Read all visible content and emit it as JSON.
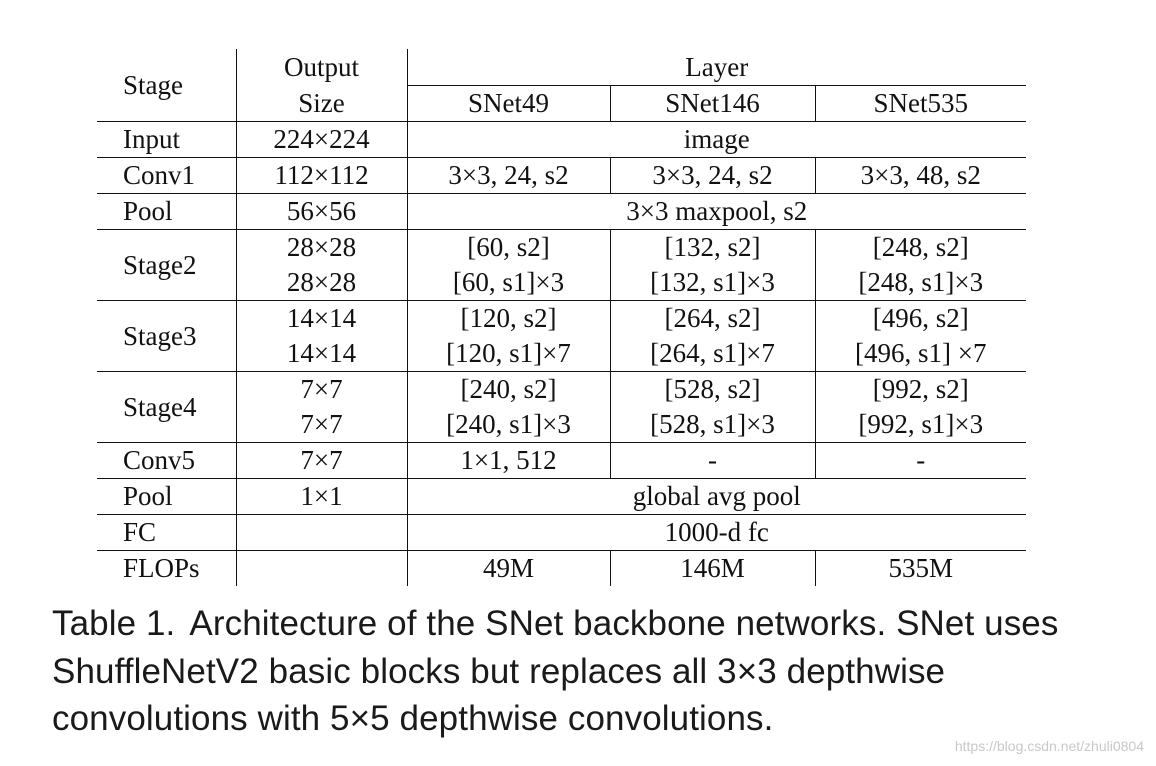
{
  "table": {
    "headers": {
      "stage": "Stage",
      "output_size_line1": "Output",
      "output_size_line2": "Size",
      "layer": "Layer",
      "snet49": "SNet49",
      "snet146": "SNet146",
      "snet535": "SNet535"
    },
    "rows": {
      "input": {
        "stage": "Input",
        "size": "224×224",
        "layer": "image"
      },
      "conv1": {
        "stage": "Conv1",
        "size": "112×112",
        "snet49": "3×3, 24, s2",
        "snet146": "3×3, 24, s2",
        "snet535": "3×3, 48, s2"
      },
      "pool1": {
        "stage": "Pool",
        "size": "56×56",
        "layer": "3×3 maxpool, s2"
      },
      "stage2": {
        "stage": "Stage2",
        "size1": "28×28",
        "size2": "28×28",
        "snet49_1": "[60, s2]",
        "snet49_2": "[60, s1]×3",
        "snet146_1": "[132, s2]",
        "snet146_2": "[132, s1]×3",
        "snet535_1": "[248, s2]",
        "snet535_2": "[248, s1]×3"
      },
      "stage3": {
        "stage": "Stage3",
        "size1": "14×14",
        "size2": "14×14",
        "snet49_1": "[120, s2]",
        "snet49_2": "[120, s1]×7",
        "snet146_1": "[264, s2]",
        "snet146_2": "[264, s1]×7",
        "snet535_1": "[496, s2]",
        "snet535_2": "[496, s1] ×7"
      },
      "stage4": {
        "stage": "Stage4",
        "size1": "7×7",
        "size2": "7×7",
        "snet49_1": "[240, s2]",
        "snet49_2": "[240, s1]×3",
        "snet146_1": "[528, s2]",
        "snet146_2": "[528, s1]×3",
        "snet535_1": "[992, s2]",
        "snet535_2": "[992, s1]×3"
      },
      "conv5": {
        "stage": "Conv5",
        "size": "7×7",
        "snet49": "1×1, 512",
        "snet146": "-",
        "snet535": "-"
      },
      "pool2": {
        "stage": "Pool",
        "size": "1×1",
        "layer": "global avg pool"
      },
      "fc": {
        "stage": "FC",
        "size": "",
        "layer": "1000-d fc"
      },
      "flops": {
        "stage": "FLOPs",
        "size": "",
        "snet49": "49M",
        "snet146": "146M",
        "snet535": "535M"
      }
    }
  },
  "caption": {
    "label": "Table 1.",
    "text": "Architecture of the SNet backbone networks. SNet uses ShuffleNetV2 basic blocks but replaces all 3×3 depthwise convolutions with 5×5 depthwise convolutions."
  },
  "watermark": "https://blog.csdn.net/zhuli0804"
}
